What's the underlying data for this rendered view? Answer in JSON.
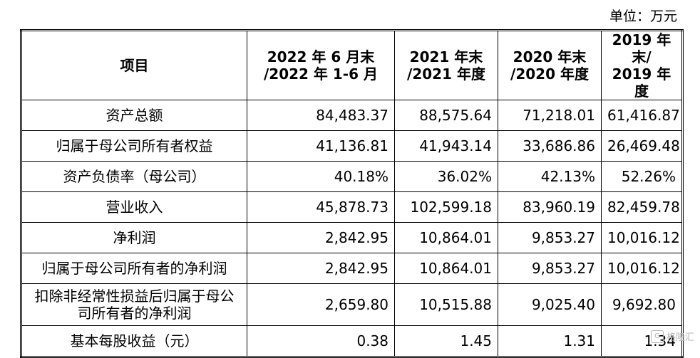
{
  "unit_label": "单位：万元",
  "table": {
    "headers": [
      {
        "line1": "项目",
        "line2": ""
      },
      {
        "line1": "2022 年 6 月末",
        "line2": "/2022 年 1-6 月"
      },
      {
        "line1": "2021 年末",
        "line2": "/2021 年度"
      },
      {
        "line1": "2020 年末",
        "line2": "/2020 年度"
      },
      {
        "line1": "2019 年末/",
        "line2": "2019 年度"
      }
    ],
    "rows": [
      {
        "label": "资产总额",
        "values": [
          "84,483.37",
          "88,575.64",
          "71,218.01",
          "61,416.87"
        ]
      },
      {
        "label": "归属于母公司所有者权益",
        "values": [
          "41,136.81",
          "41,943.14",
          "33,686.86",
          "26,469.48"
        ]
      },
      {
        "label": "资产负债率（母公司）",
        "values": [
          "40.18%",
          "36.02%",
          "42.13%",
          "52.26%"
        ]
      },
      {
        "label": "营业收入",
        "values": [
          "45,878.73",
          "102,599.18",
          "83,960.19",
          "82,459.78"
        ]
      },
      {
        "label": "净利润",
        "values": [
          "2,842.95",
          "10,864.01",
          "9,853.27",
          "10,016.12"
        ]
      },
      {
        "label": "归属于母公司所有者的净利润",
        "values": [
          "2,842.95",
          "10,864.01",
          "9,853.27",
          "10,016.12"
        ]
      },
      {
        "label": "扣除非经常性损益后归属于母公司所有者的净利润",
        "values": [
          "2,659.80",
          "10,515.88",
          "9,025.40",
          "9,692.80"
        ]
      },
      {
        "label": "基本每股收益（元）",
        "values": [
          "0.38",
          "1.45",
          "1.31",
          "1.34"
        ]
      }
    ]
  },
  "watermark": {
    "icon": "gelonghui-logo-icon",
    "text": "格隆汇"
  }
}
